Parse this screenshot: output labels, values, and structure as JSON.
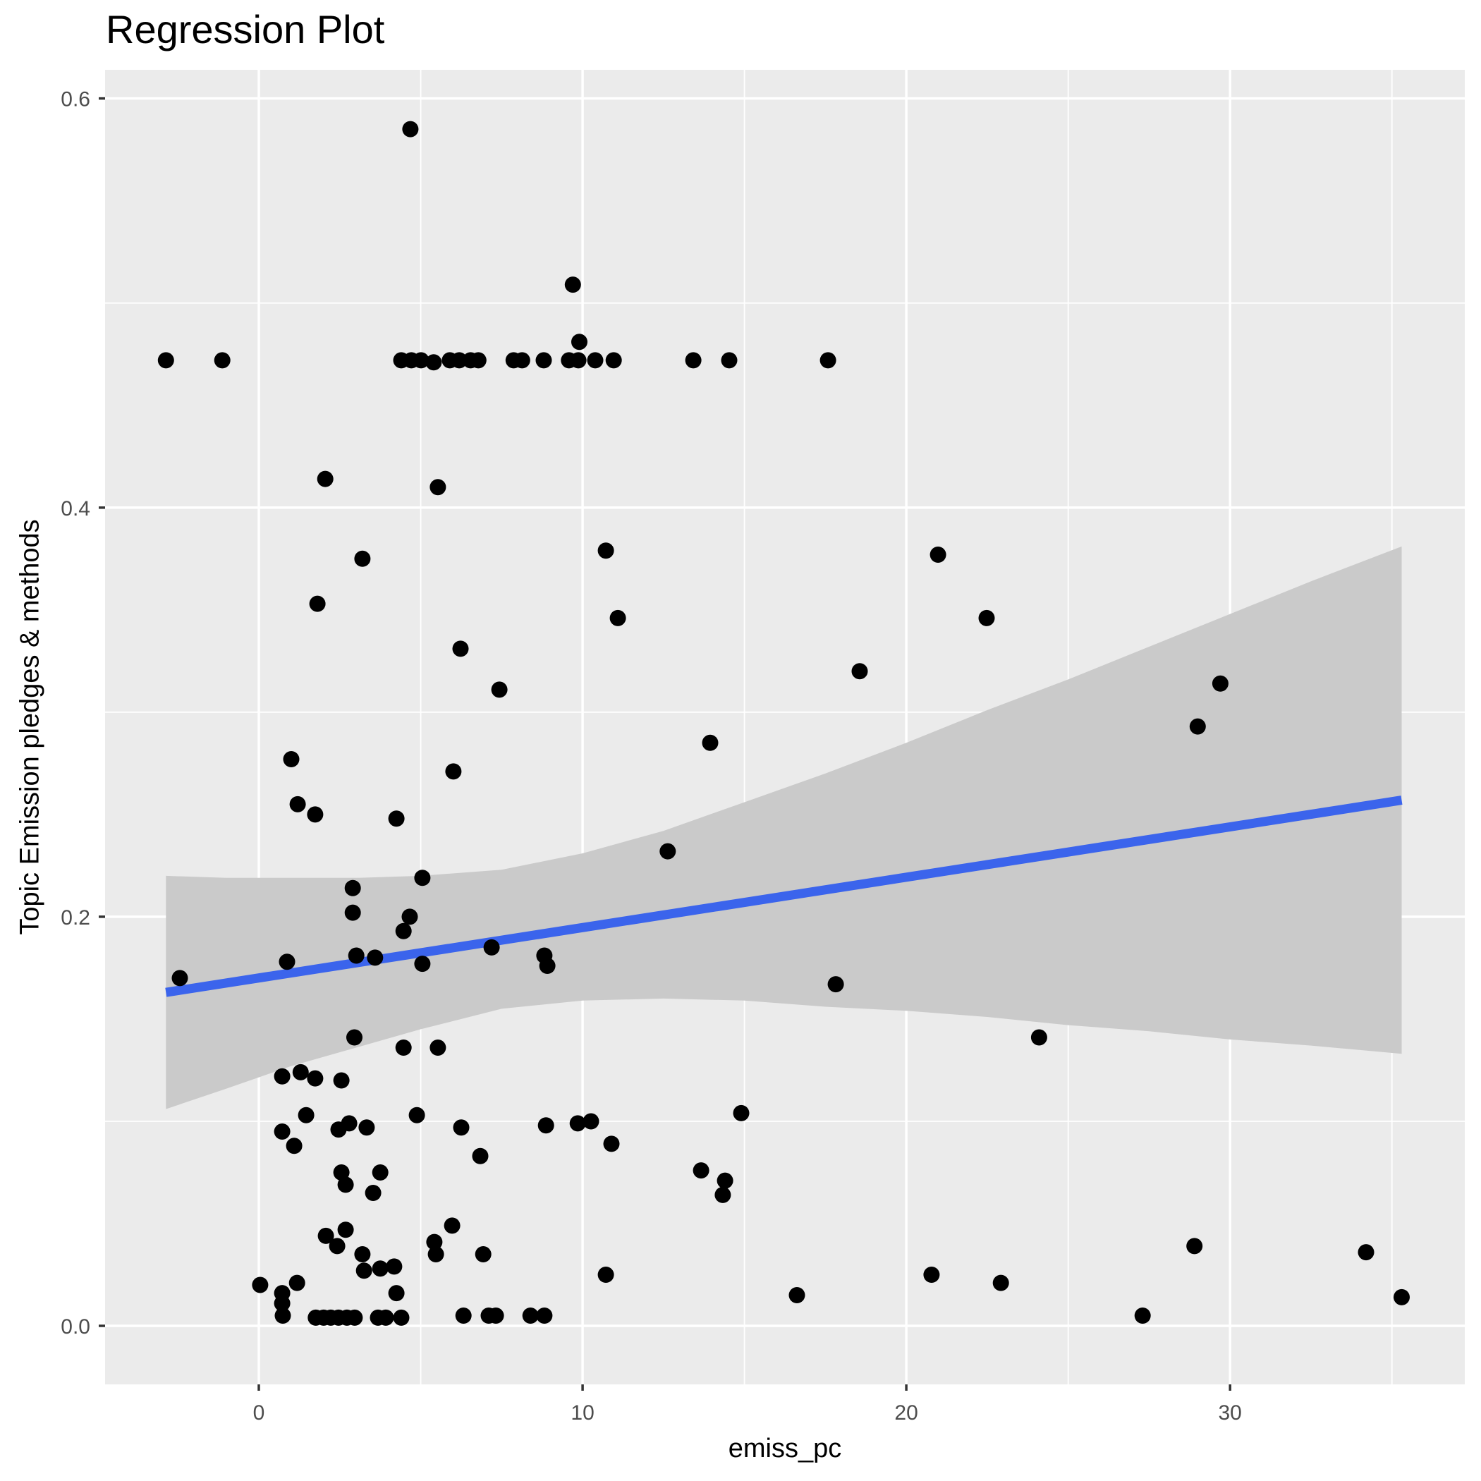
{
  "chart_data": {
    "type": "scatter",
    "title": "Regression Plot",
    "xlabel": "emiss_pc",
    "ylabel": "Topic Emission pledges & methods",
    "xlim": [
      -4.75,
      37.25
    ],
    "ylim": [
      -0.0286,
      0.614
    ],
    "x_ticks": [
      0,
      10,
      20,
      30
    ],
    "x_tick_labels": [
      "0",
      "10",
      "20",
      "30"
    ],
    "y_ticks": [
      0.0,
      0.2,
      0.4,
      0.6
    ],
    "y_tick_labels": [
      "0.0",
      "0.2",
      "0.4",
      "0.6"
    ],
    "x_minor_ticks": [
      5,
      15,
      25,
      35
    ],
    "y_minor_ticks": [
      0.1,
      0.3,
      0.5
    ],
    "grid": true,
    "legend": "none",
    "colors": {
      "panel_bg": "#EBEBEB",
      "grid": "#FFFFFF",
      "point": "#000000",
      "line": "#3B64EC",
      "band": "#CACACA",
      "tick_text": "#4D4D4D",
      "tick_mark": "#333333",
      "title_text": "#000000"
    },
    "regression_line": {
      "x1": -2.87,
      "y1": 0.163,
      "x2": 35.3,
      "y2": 0.257
    },
    "confidence_band": {
      "x": [
        -2.87,
        -1.0,
        1.0,
        3.0,
        5.0,
        7.5,
        10.0,
        12.5,
        15.0,
        17.5,
        20.0,
        22.5,
        25.0,
        27.5,
        30.0,
        32.5,
        35.3
      ],
      "upper": [
        0.22,
        0.219,
        0.219,
        0.219,
        0.22,
        0.223,
        0.231,
        0.242,
        0.256,
        0.27,
        0.285,
        0.301,
        0.316,
        0.332,
        0.348,
        0.364,
        0.381
      ],
      "lower": [
        0.106,
        0.116,
        0.127,
        0.136,
        0.145,
        0.155,
        0.159,
        0.16,
        0.159,
        0.156,
        0.154,
        0.151,
        0.147,
        0.144,
        0.14,
        0.137,
        0.133
      ]
    },
    "points": [
      [
        4.68,
        0.585
      ],
      [
        9.7,
        0.509
      ],
      [
        9.9,
        0.481
      ],
      [
        -2.87,
        0.472
      ],
      [
        -1.13,
        0.472
      ],
      [
        4.4,
        0.472
      ],
      [
        4.71,
        0.472
      ],
      [
        5.01,
        0.472
      ],
      [
        5.4,
        0.471
      ],
      [
        5.9,
        0.472
      ],
      [
        6.19,
        0.472
      ],
      [
        6.54,
        0.472
      ],
      [
        6.78,
        0.472
      ],
      [
        7.87,
        0.472
      ],
      [
        8.13,
        0.472
      ],
      [
        8.8,
        0.472
      ],
      [
        9.58,
        0.472
      ],
      [
        9.87,
        0.472
      ],
      [
        10.39,
        0.472
      ],
      [
        10.96,
        0.472
      ],
      [
        13.42,
        0.472
      ],
      [
        14.53,
        0.472
      ],
      [
        17.58,
        0.472
      ],
      [
        2.05,
        0.414
      ],
      [
        5.53,
        0.41
      ],
      [
        3.2,
        0.375
      ],
      [
        10.72,
        0.379
      ],
      [
        20.98,
        0.377
      ],
      [
        1.81,
        0.353
      ],
      [
        11.09,
        0.346
      ],
      [
        22.48,
        0.346
      ],
      [
        6.23,
        0.331
      ],
      [
        18.56,
        0.32
      ],
      [
        7.43,
        0.311
      ],
      [
        29.7,
        0.314
      ],
      [
        29.0,
        0.293
      ],
      [
        13.94,
        0.285
      ],
      [
        1.0,
        0.277
      ],
      [
        6.01,
        0.271
      ],
      [
        1.2,
        0.255
      ],
      [
        1.74,
        0.25
      ],
      [
        4.25,
        0.248
      ],
      [
        12.63,
        0.232
      ],
      [
        5.05,
        0.219
      ],
      [
        2.9,
        0.214
      ],
      [
        2.9,
        0.202
      ],
      [
        4.66,
        0.2
      ],
      [
        4.47,
        0.193
      ],
      [
        7.19,
        0.185
      ],
      [
        3.01,
        0.181
      ],
      [
        3.59,
        0.18
      ],
      [
        8.82,
        0.181
      ],
      [
        8.91,
        0.176
      ],
      [
        0.87,
        0.178
      ],
      [
        5.05,
        0.177
      ],
      [
        -2.44,
        0.17
      ],
      [
        17.82,
        0.167
      ],
      [
        2.95,
        0.141
      ],
      [
        4.47,
        0.136
      ],
      [
        5.53,
        0.136
      ],
      [
        24.1,
        0.141
      ],
      [
        0.72,
        0.122
      ],
      [
        1.29,
        0.124
      ],
      [
        1.74,
        0.121
      ],
      [
        2.55,
        0.12
      ],
      [
        1.46,
        0.103
      ],
      [
        4.88,
        0.103
      ],
      [
        14.9,
        0.104
      ],
      [
        0.72,
        0.095
      ],
      [
        2.79,
        0.099
      ],
      [
        2.46,
        0.096
      ],
      [
        3.33,
        0.097
      ],
      [
        6.25,
        0.097
      ],
      [
        8.87,
        0.098
      ],
      [
        9.85,
        0.099
      ],
      [
        10.26,
        0.1
      ],
      [
        10.89,
        0.089
      ],
      [
        1.09,
        0.088
      ],
      [
        6.84,
        0.083
      ],
      [
        13.66,
        0.076
      ],
      [
        14.4,
        0.071
      ],
      [
        14.33,
        0.064
      ],
      [
        2.55,
        0.075
      ],
      [
        3.75,
        0.075
      ],
      [
        2.68,
        0.069
      ],
      [
        3.53,
        0.065
      ],
      [
        5.97,
        0.049
      ],
      [
        2.68,
        0.047
      ],
      [
        2.07,
        0.044
      ],
      [
        2.42,
        0.039
      ],
      [
        28.9,
        0.039
      ],
      [
        5.42,
        0.041
      ],
      [
        5.47,
        0.035
      ],
      [
        6.93,
        0.035
      ],
      [
        3.2,
        0.035
      ],
      [
        34.2,
        0.036
      ],
      [
        3.25,
        0.027
      ],
      [
        3.75,
        0.028
      ],
      [
        4.18,
        0.029
      ],
      [
        20.78,
        0.025
      ],
      [
        10.72,
        0.025
      ],
      [
        22.92,
        0.021
      ],
      [
        0.04,
        0.02
      ],
      [
        1.18,
        0.021
      ],
      [
        4.25,
        0.016
      ],
      [
        0.72,
        0.016
      ],
      [
        16.62,
        0.015
      ],
      [
        35.3,
        0.014
      ],
      [
        0.72,
        0.011
      ],
      [
        0.74,
        0.005
      ],
      [
        27.3,
        0.005
      ],
      [
        6.32,
        0.005
      ],
      [
        7.1,
        0.005
      ],
      [
        7.32,
        0.005
      ],
      [
        8.39,
        0.005
      ],
      [
        8.82,
        0.005
      ],
      [
        1.76,
        0.004
      ],
      [
        2.0,
        0.004
      ],
      [
        2.22,
        0.004
      ],
      [
        2.46,
        0.004
      ],
      [
        2.72,
        0.004
      ],
      [
        2.96,
        0.004
      ],
      [
        3.68,
        0.004
      ],
      [
        3.92,
        0.004
      ],
      [
        4.4,
        0.004
      ]
    ]
  }
}
